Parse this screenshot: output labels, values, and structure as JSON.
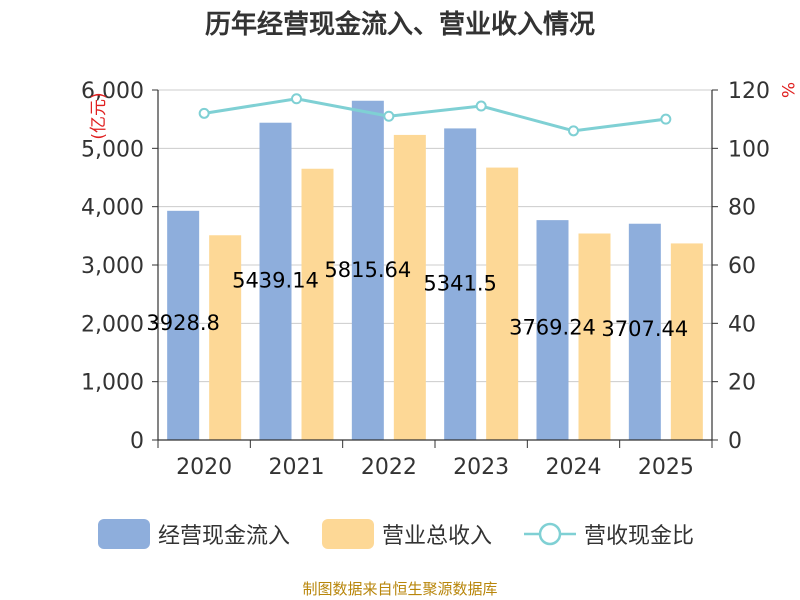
{
  "chart_data": {
    "type": "bar",
    "title": "历年经营现金流入、营业收入情况",
    "categories": [
      "2020",
      "2021",
      "2022",
      "2023",
      "2024",
      "2025"
    ],
    "series": [
      {
        "name": "经营现金流入",
        "values": [
          3928.8,
          5439.14,
          5815.64,
          5341.5,
          3769.24,
          3707.44
        ],
        "color": "#8eaedc"
      },
      {
        "name": "营业总收入",
        "values": [
          3510,
          4650,
          5230,
          4670,
          3540,
          3370
        ],
        "color": "#fdd896"
      },
      {
        "name": "营收现金比",
        "type": "line",
        "axis": "right",
        "values": [
          112,
          117,
          111,
          114.5,
          106,
          110
        ],
        "color": "#7fd0d4"
      }
    ],
    "data_labels": [
      "3928.8",
      "5439.14",
      "5815.64",
      "5341.5",
      "3769.24",
      "3707.44"
    ],
    "ylabel_left": "亿元",
    "ylabel_right": "%",
    "ylim_left": [
      0,
      6000
    ],
    "ylim_right": [
      0,
      120
    ],
    "left_ticks": [
      "0",
      "1,000",
      "2,000",
      "3,000",
      "4,000",
      "5,000",
      "6,000"
    ],
    "right_ticks": [
      "0",
      "20",
      "40",
      "60",
      "80",
      "100",
      "120"
    ],
    "grid": true,
    "legend_position": "bottom"
  },
  "footer": "制图数据来自恒生聚源数据库"
}
